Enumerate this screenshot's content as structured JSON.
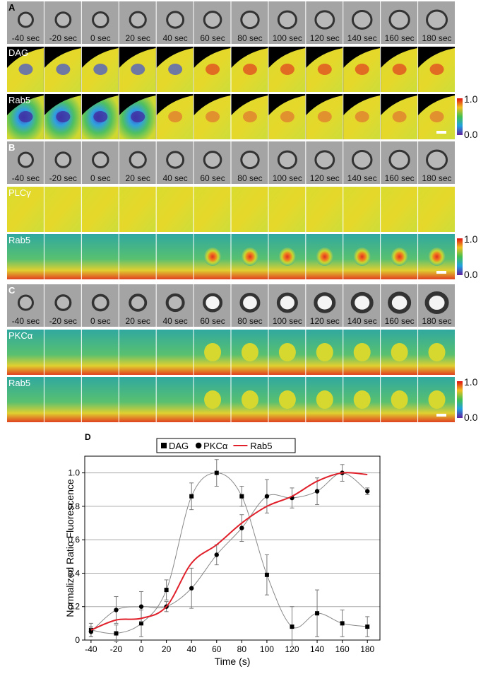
{
  "panels": [
    {
      "label": "A",
      "times": [
        "-40 sec",
        "-20 sec",
        "0 sec",
        "20 sec",
        "40 sec",
        "60 sec",
        "80 sec",
        "100 sec",
        "120 sec",
        "140 sec",
        "160 sec",
        "180 sec"
      ],
      "channels": [
        "DAG",
        "Rab5"
      ],
      "colorbar": {
        "max": "1.0",
        "min": "0.0"
      }
    },
    {
      "label": "B",
      "times": [
        "-40 sec",
        "-20 sec",
        "0 sec",
        "20 sec",
        "40 sec",
        "60 sec",
        "80 sec",
        "100 sec",
        "120 sec",
        "140 sec",
        "160 sec",
        "180 sec"
      ],
      "channels": [
        "PLCγ",
        "Rab5"
      ],
      "colorbar": {
        "max": "1.0",
        "min": "0.0"
      }
    },
    {
      "label": "C",
      "times": [
        "-40 sec",
        "-20 sec",
        "0 sec",
        "20 sec",
        "40 sec",
        "60 sec",
        "80 sec",
        "100 sec",
        "120 sec",
        "140 sec",
        "160 sec",
        "180 sec"
      ],
      "channels": [
        "PKCα",
        "Rab5"
      ],
      "colorbar": {
        "max": "1.0",
        "min": "0.0"
      }
    }
  ],
  "chart_data": {
    "type": "line",
    "panel_label": "D",
    "x": [
      -40,
      -20,
      0,
      20,
      40,
      60,
      80,
      100,
      120,
      140,
      160,
      180
    ],
    "xlim": [
      -45,
      190
    ],
    "xticks": [
      -40,
      -20,
      0,
      20,
      40,
      60,
      80,
      100,
      120,
      140,
      160,
      180
    ],
    "ylim": [
      0,
      1.1
    ],
    "yticks": [
      0,
      0.2,
      0.4,
      0.6,
      0.8,
      {
        "value": 1,
        "label": "1.0"
      }
    ],
    "grid": true,
    "x_label": "Time (s)",
    "y_label": "Normalized Ratio Fluorescence",
    "series": [
      {
        "name": "DAG",
        "color": "#000000",
        "marker": "square",
        "values": [
          0.06,
          0.04,
          0.1,
          0.3,
          0.86,
          1.0,
          0.86,
          0.39,
          0.08,
          0.16,
          0.1,
          0.08
        ],
        "errors": [
          0.04,
          0.05,
          0.08,
          0.06,
          0.08,
          0.08,
          0.06,
          0.12,
          0.12,
          0.14,
          0.08,
          0.06
        ]
      },
      {
        "name": "PKCα",
        "color": "#000000",
        "marker": "circle",
        "values": [
          0.05,
          0.18,
          0.2,
          0.2,
          0.31,
          0.51,
          0.67,
          0.86,
          0.85,
          0.89,
          1.0,
          0.89
        ],
        "errors": [
          0.03,
          0.08,
          0.09,
          0.03,
          0.12,
          0.06,
          0.08,
          0.1,
          0.06,
          0.08,
          0.05,
          0.02
        ]
      },
      {
        "name": "Rab5",
        "color": "#e0202a",
        "marker": "none",
        "values": [
          0.06,
          0.12,
          0.13,
          0.2,
          0.46,
          0.57,
          0.7,
          0.8,
          0.86,
          0.95,
          1.0,
          0.99
        ]
      }
    ]
  }
}
